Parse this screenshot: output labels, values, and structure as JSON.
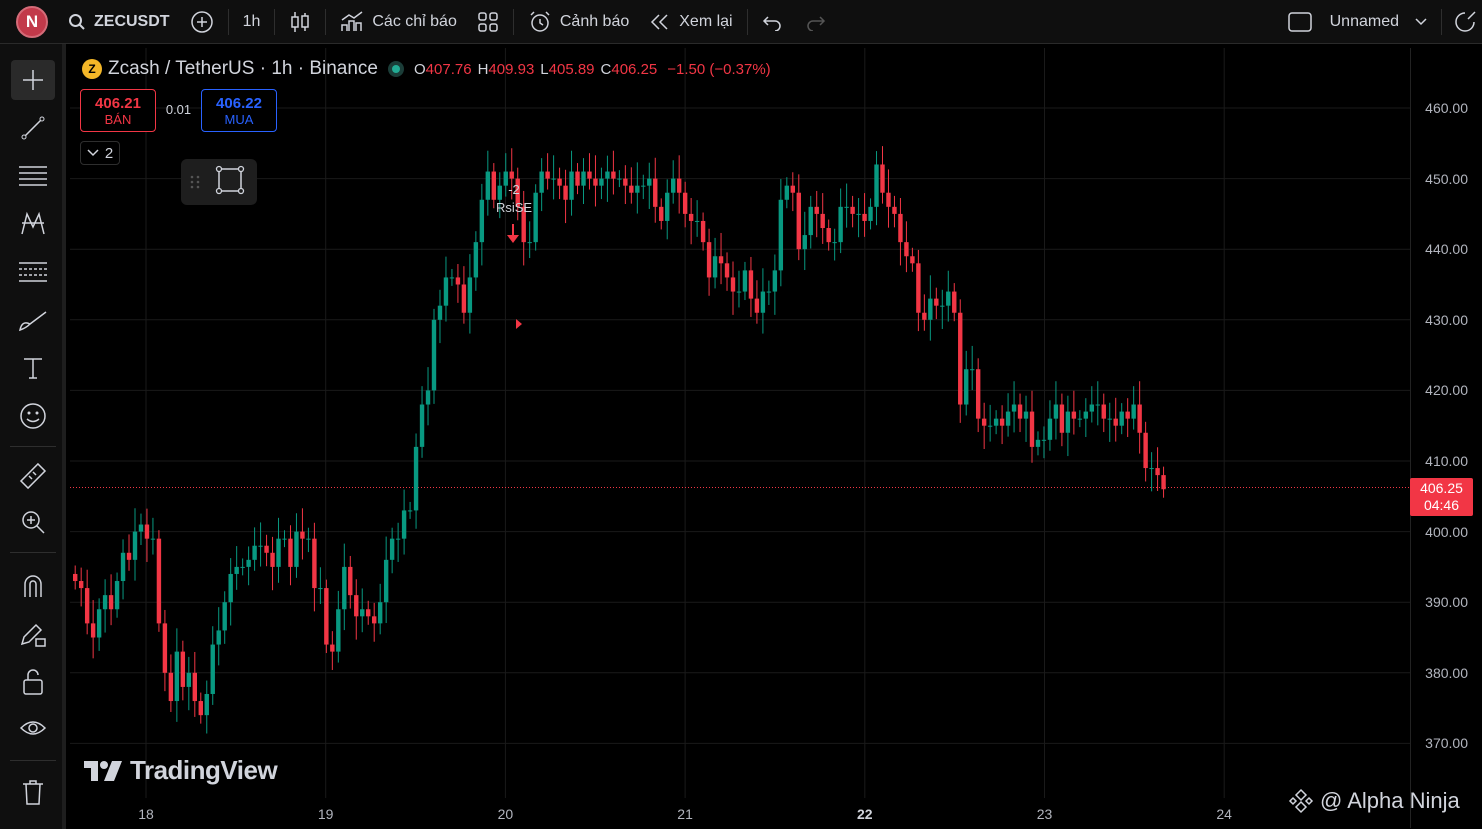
{
  "topbar": {
    "avatar_letter": "N",
    "symbol": "ZECUSDT",
    "interval": "1h",
    "indicators_label": "Các chỉ báo",
    "alerts_label": "Cảnh báo",
    "replay_label": "Xem lại",
    "layout_name": "Unnamed"
  },
  "legend": {
    "title": "Zcash / TetherUS · 1h · Binance",
    "symbol_icon_letter": "Z",
    "open_key": "O",
    "open": "407.76",
    "high_key": "H",
    "high": "409.93",
    "low_key": "L",
    "low": "405.89",
    "close_key": "C",
    "close": "406.25",
    "change": "−1.50 (−0.37%)"
  },
  "trade": {
    "sell_price": "406.21",
    "sell_label": "BÁN",
    "spread": "0.01",
    "buy_price": "406.22",
    "buy_label": "MUA",
    "collapse_count": "2"
  },
  "price_axis": {
    "ticks": [
      "460.00",
      "450.00",
      "440.00",
      "430.00",
      "420.00",
      "410.00",
      "400.00",
      "390.00",
      "380.00",
      "370.00"
    ],
    "current_price": "406.25",
    "countdown": "04:46"
  },
  "time_axis": {
    "ticks": [
      "18",
      "19",
      "20",
      "21",
      "22",
      "23",
      "24"
    ],
    "bold_tick": "22"
  },
  "annotation": {
    "value": "-2",
    "label": "RsiSE"
  },
  "watermark": {
    "brand": "TradingView",
    "credit": "@ Alpha Ninja"
  },
  "colors": {
    "up": "#089981",
    "down": "#f23645",
    "background": "#000000",
    "grid": "#1a1a1a"
  },
  "chart_data": {
    "type": "candlestick",
    "interval": "1h",
    "ylim": [
      365,
      465
    ],
    "x_ticks": [
      "18",
      "19",
      "20",
      "21",
      "22",
      "23",
      "24"
    ],
    "closes": [
      393,
      392,
      387,
      385,
      389,
      391,
      389,
      393,
      397,
      396,
      400,
      401,
      399,
      399,
      387,
      380,
      376,
      383,
      378,
      380,
      376,
      374,
      377,
      384,
      386,
      390,
      394,
      395,
      395,
      396,
      398,
      398,
      397,
      395,
      399,
      399,
      395,
      400,
      399,
      399,
      392,
      392,
      384,
      383,
      389,
      395,
      391,
      388,
      389,
      388,
      387,
      390,
      396,
      399,
      399,
      403,
      403,
      412,
      418,
      420,
      430,
      432,
      436,
      436,
      435,
      431,
      436,
      441,
      447,
      451,
      447,
      449,
      451,
      450,
      446,
      441,
      441,
      448,
      451,
      450,
      450,
      449,
      447,
      451,
      449,
      451,
      450,
      449,
      450,
      451,
      450,
      450,
      449,
      448,
      449,
      449,
      450,
      446,
      444,
      448,
      450,
      448,
      445,
      444,
      444,
      441,
      436,
      439,
      438,
      436,
      434,
      434,
      437,
      433,
      431,
      434,
      434,
      437,
      447,
      449,
      448,
      440,
      442,
      446,
      445,
      443,
      441,
      441,
      446,
      446,
      445,
      445,
      444,
      446,
      452,
      448,
      446,
      445,
      441,
      439,
      438,
      431,
      430,
      433,
      432,
      432,
      434,
      431,
      418,
      423,
      423,
      416,
      415,
      415,
      416,
      415,
      417,
      418,
      416,
      417,
      412,
      413,
      413,
      416,
      418,
      414,
      417,
      416,
      416,
      417,
      418,
      418,
      416,
      416,
      415,
      417,
      416,
      418,
      414,
      409,
      409,
      408,
      406
    ]
  }
}
